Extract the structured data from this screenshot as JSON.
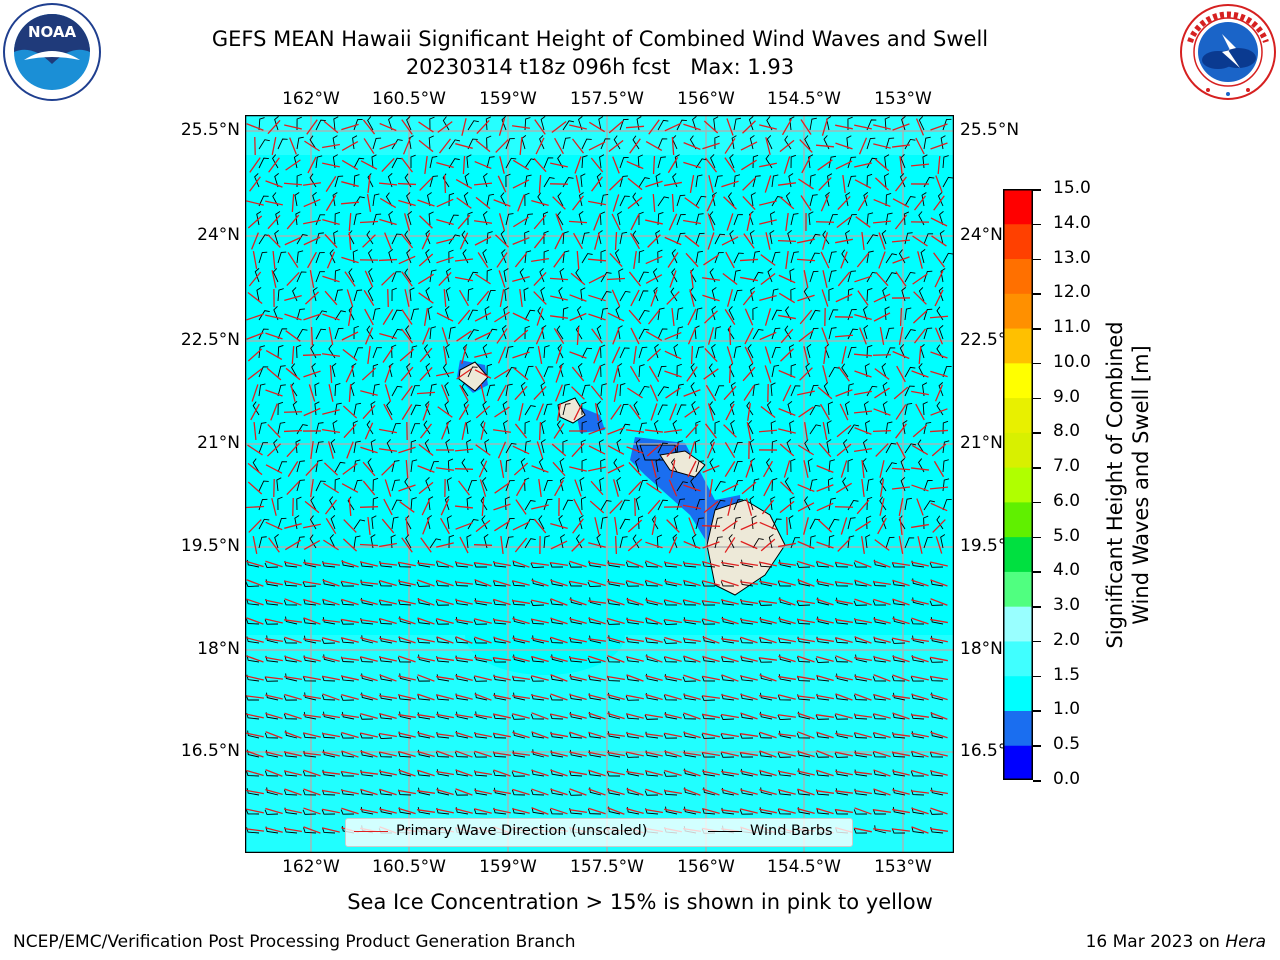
{
  "title": {
    "line1": "GEFS MEAN Hawaii Significant Height of Combined Wind Waves and Swell",
    "line2": "20230314 t18z 096h fcst   Max: 1.93"
  },
  "logos": {
    "left": {
      "name": "noaa-logo",
      "text": "NOAA",
      "ring_text": "NATIONAL OCEANIC AND ATMOSPHERIC ADMINISTRATION · U.S. DEPARTMENT OF COMMERCE"
    },
    "right": {
      "name": "nws-logo",
      "ring_text": "NATIONAL WEATHER SERVICE"
    }
  },
  "map": {
    "lon_ticks": [
      "162°W",
      "160.5°W",
      "159°W",
      "157.5°W",
      "156°W",
      "154.5°W",
      "153°W"
    ],
    "lat_ticks": [
      "25.5°N",
      "24°N",
      "22.5°N",
      "21°N",
      "19.5°N",
      "18°N",
      "16.5°N"
    ],
    "ocean_color": "#00ffff",
    "land_color": "#ede9d8",
    "low_wave_color": "#1a6ef0",
    "wave_arrow_color": "#e02020",
    "barb_color": "#000000",
    "grid_color": "#b0b0b0"
  },
  "legend": {
    "wave_label": "Primary Wave Direction (unscaled)",
    "barb_label": "Wind Barbs"
  },
  "colorbar": {
    "title_line1": "Significant Height of Combined",
    "title_line2": "Wind Waves and Swell [m]",
    "labels": [
      "15.0",
      "14.0",
      "13.0",
      "12.0",
      "11.0",
      "10.0",
      "9.0",
      "8.0",
      "7.0",
      "6.0",
      "5.0",
      "4.0",
      "3.0",
      "2.0",
      "1.5",
      "1.0",
      "0.5",
      "0.0"
    ],
    "colors_bottom_to_top": [
      "#0000ff",
      "#1a6ef0",
      "#00ffff",
      "#40ffff",
      "#99ffff",
      "#50ff80",
      "#00e040",
      "#60f000",
      "#b0ff00",
      "#d8f000",
      "#e8f000",
      "#ffff00",
      "#ffc000",
      "#ff9000",
      "#ff7000",
      "#ff4000",
      "#ff0000"
    ]
  },
  "caption": "Sea Ice Concentration > 15% is shown in pink to yellow",
  "footer": {
    "left": "NCEP/EMC/Verification Post Processing Product Generation Branch",
    "date": "16 Mar 2023 on ",
    "host": "Hera"
  }
}
